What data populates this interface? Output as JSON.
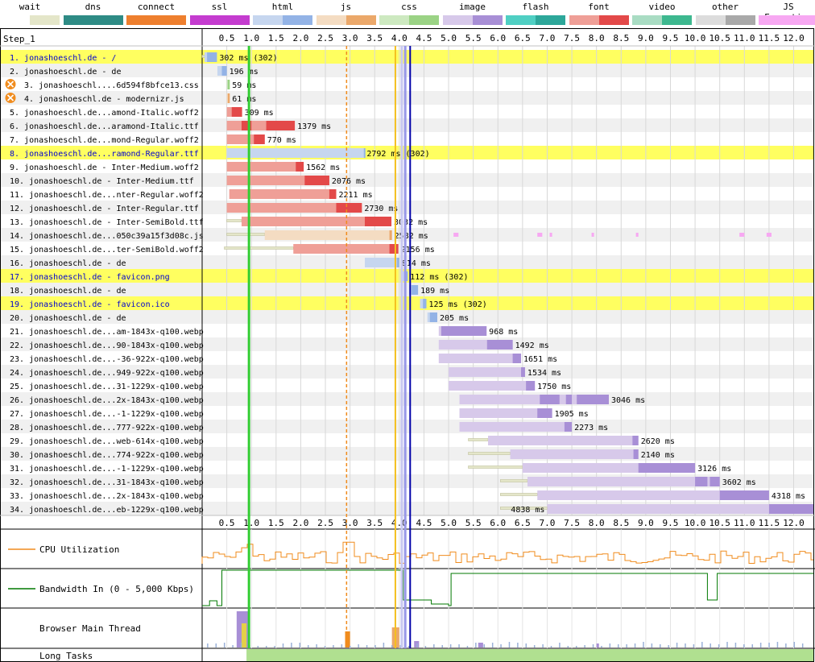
{
  "legend": [
    {
      "label": "wait",
      "a": "#ffffff",
      "b": "#e4e6c9"
    },
    {
      "label": "dns",
      "a": "#2e8b85",
      "b": "#2e8b85"
    },
    {
      "label": "connect",
      "a": "#ee7f2e",
      "b": "#ee7f2e"
    },
    {
      "label": "ssl",
      "a": "#c43ccf",
      "b": "#c43ccf"
    },
    {
      "label": "html",
      "a": "#c6d6ef",
      "b": "#93b3e6"
    },
    {
      "label": "js",
      "a": "#f4dcc2",
      "b": "#eba86a"
    },
    {
      "label": "css",
      "a": "#cde9c0",
      "b": "#9bd385"
    },
    {
      "label": "image",
      "a": "#d7c9ea",
      "b": "#a88fd6"
    },
    {
      "label": "flash",
      "a": "#4fcfc3",
      "b": "#2da79a"
    },
    {
      "label": "font",
      "a": "#ef9f97",
      "b": "#e34949"
    },
    {
      "label": "video",
      "a": "#a9dcc3",
      "b": "#3db88f"
    },
    {
      "label": "other",
      "a": "#dcdcdc",
      "b": "#a9a9a9"
    },
    {
      "label": "JS Execution",
      "a": "#f7a8f2",
      "b": "#f7a8f2"
    }
  ],
  "step_label": "Step_1",
  "chart_data": {
    "type": "waterfall",
    "x_unit": "seconds",
    "x_ticks": [
      "0.5",
      "1.0",
      "1.5",
      "2.0",
      "2.5",
      "3.0",
      "3.5",
      "4.0",
      "4.5",
      "5.0",
      "5.5",
      "6.0",
      "6.5",
      "7.0",
      "7.5",
      "8.0",
      "8.5",
      "9.0",
      "9.5",
      "10.0",
      "10.5",
      "11.0",
      "11.5",
      "12.0"
    ],
    "xlim": [
      0,
      12.4
    ],
    "markers": [
      {
        "name": "start render",
        "t": 0.95,
        "color": "#32cd32",
        "style": "solid",
        "width": 3
      },
      {
        "name": "dom interactive",
        "t": 2.93,
        "color": "#f08c1e",
        "style": "dashed",
        "width": 1.5
      },
      {
        "name": "dom content loaded",
        "t": 3.92,
        "color": "#f4c01e",
        "style": "solid",
        "width": 2
      },
      {
        "name": "on load start",
        "t": 4.05,
        "color": "#c8c8f0",
        "style": "solid",
        "width": 3
      },
      {
        "name": "on load",
        "t": 4.12,
        "color": "#9898e8",
        "style": "solid",
        "width": 3
      },
      {
        "name": "document complete",
        "t": 4.22,
        "color": "#0000a8",
        "style": "solid",
        "width": 2
      }
    ],
    "requests": [
      {
        "n": 1,
        "label": "1. jonashoeschl.de - /",
        "type": "html",
        "highlight": true,
        "link": true,
        "wait": [
          0,
          0.05
        ],
        "start": 0.05,
        "ttfb": 0.1,
        "end": 0.3,
        "text": "302 ms (302)"
      },
      {
        "n": 2,
        "label": "2. jonashoeschl.de - de",
        "type": "html",
        "start": 0.31,
        "ttfb": 0.4,
        "end": 0.5,
        "text": "196 ms"
      },
      {
        "n": 3,
        "label": "3. jonashoeschl....6d594f8bfce13.css",
        "type": "css",
        "blocked": true,
        "start": 0.5,
        "ttfb": 0.52,
        "end": 0.56,
        "text": "59 ms"
      },
      {
        "n": 4,
        "label": "4. jonashoeschl.de - modernizr.js",
        "type": "js",
        "blocked": true,
        "start": 0.5,
        "ttfb": 0.52,
        "end": 0.56,
        "text": "61 ms"
      },
      {
        "n": 5,
        "label": "5. jonashoeschl.de...amond-Italic.woff2",
        "type": "font",
        "start": 0.5,
        "ttfb": 0.6,
        "end": 0.81,
        "text": "309 ms"
      },
      {
        "n": 6,
        "label": "6. jonashoeschl.de...aramond-Italic.ttf",
        "type": "font",
        "start": 0.5,
        "ttfb": 0.81,
        "end": 1.88,
        "chunks": [
          [
            0.8,
            1.0
          ],
          [
            1.3,
            1.88
          ]
        ],
        "text": "1379 ms"
      },
      {
        "n": 7,
        "label": "7. jonashoeschl.de...mond-Regular.woff2",
        "type": "font",
        "start": 0.5,
        "ttfb": 1.05,
        "end": 1.27,
        "text": "770 ms"
      },
      {
        "n": 8,
        "label": "8. jonashoeschl.de...ramond-Regular.ttf",
        "type": "html",
        "highlight": true,
        "link": true,
        "start": 0.5,
        "ttfb": 3.28,
        "end": 3.29,
        "text": "2792 ms (302)"
      },
      {
        "n": 9,
        "label": "9. jonashoeschl.de - Inter-Medium.woff2",
        "type": "font",
        "start": 0.5,
        "ttfb": 1.9,
        "end": 2.06,
        "text": "1562 ms"
      },
      {
        "n": 10,
        "label": "10. jonashoeschl.de - Inter-Medium.ttf",
        "type": "font",
        "start": 0.5,
        "ttfb": 2.08,
        "end": 2.58,
        "text": "2076 ms"
      },
      {
        "n": 11,
        "label": "11. jonashoeschl.de...nter-Regular.woff2",
        "type": "font",
        "start": 0.55,
        "ttfb": 2.58,
        "end": 2.72,
        "text": "2211 ms"
      },
      {
        "n": 12,
        "label": "12. jonashoeschl.de - Inter-Regular.ttf",
        "type": "font",
        "start": 0.5,
        "ttfb": 2.72,
        "end": 3.24,
        "text": "2730 ms"
      },
      {
        "n": 13,
        "label": "13. jonashoeschl.de - Inter-SemiBold.ttf",
        "type": "font",
        "wait": [
          0.5,
          0.8
        ],
        "start": 0.8,
        "ttfb": 3.3,
        "end": 3.84,
        "text": "3032 ms"
      },
      {
        "n": 14,
        "label": "14. jonashoeschl.de...050c39a15f3d08c.js",
        "type": "js",
        "wait": [
          0.5,
          1.27
        ],
        "start": 1.27,
        "ttfb": 3.8,
        "end": 3.85,
        "text": "2582 ms",
        "exec": [
          [
            5.1,
            5.2
          ],
          [
            6.8,
            6.9
          ],
          [
            7.05,
            7.1
          ],
          [
            7.9,
            7.95
          ],
          [
            8.8,
            8.85
          ],
          [
            10.9,
            11.0
          ],
          [
            11.45,
            11.55
          ]
        ]
      },
      {
        "n": 15,
        "label": "15. jonashoeschl.de...ter-SemiBold.woff2",
        "type": "font",
        "wait": [
          0.45,
          1.85
        ],
        "start": 1.85,
        "ttfb": 3.8,
        "end": 3.98,
        "text": "2156 ms"
      },
      {
        "n": 16,
        "label": "16. jonashoeschl.de - de",
        "type": "html",
        "start": 3.3,
        "ttfb": 3.95,
        "end": 4.0,
        "text": "814 ms"
      },
      {
        "n": 17,
        "label": "17. jonashoeschl.de - favicon.png",
        "type": "html",
        "highlight": true,
        "link": true,
        "start": 4.05,
        "ttfb": 4.1,
        "end": 4.17,
        "text": "112 ms (302)"
      },
      {
        "n": 18,
        "label": "18. jonashoeschl.de - de",
        "type": "html",
        "start": 4.2,
        "ttfb": 4.25,
        "end": 4.38,
        "text": "189 ms"
      },
      {
        "n": 19,
        "label": "19. jonashoeschl.de - favicon.ico",
        "type": "html",
        "highlight": true,
        "link": true,
        "start": 4.42,
        "ttfb": 4.48,
        "end": 4.55,
        "text": "125 ms (302)"
      },
      {
        "n": 20,
        "label": "20. jonashoeschl.de - de",
        "type": "html",
        "start": 4.57,
        "ttfb": 4.62,
        "end": 4.77,
        "text": "205 ms"
      },
      {
        "n": 21,
        "label": "21. jonashoeschl.de...am-1843x-q100.webp",
        "type": "image",
        "start": 4.8,
        "ttfb": 4.85,
        "end": 5.77,
        "text": "968 ms"
      },
      {
        "n": 22,
        "label": "22. jonashoeschl.de...90-1843x-q100.webp",
        "type": "image",
        "start": 4.8,
        "ttfb": 5.78,
        "end": 6.3,
        "text": "1492 ms"
      },
      {
        "n": 23,
        "label": "23. jonashoeschl.de...-36-922x-q100.webp",
        "type": "image",
        "start": 4.8,
        "ttfb": 6.3,
        "end": 6.47,
        "text": "1651 ms"
      },
      {
        "n": 24,
        "label": "24. jonashoeschl.de...949-922x-q100.webp",
        "type": "image",
        "start": 5.0,
        "ttfb": 6.47,
        "end": 6.55,
        "text": "1534 ms"
      },
      {
        "n": 25,
        "label": "25. jonashoeschl.de...31-1229x-q100.webp",
        "type": "image",
        "start": 5.0,
        "ttfb": 6.57,
        "end": 6.75,
        "text": "1750 ms"
      },
      {
        "n": 26,
        "label": "26. jonashoeschl.de...2x-1843x-q100.webp",
        "type": "image",
        "start": 5.22,
        "ttfb": 7.4,
        "end": 8.25,
        "chunks": [
          [
            6.85,
            7.25
          ],
          [
            7.38,
            7.5
          ],
          [
            7.6,
            8.25
          ]
        ],
        "text": "3046 ms"
      },
      {
        "n": 27,
        "label": "27. jonashoeschl.de...-1-1229x-q100.webp",
        "type": "image",
        "start": 5.22,
        "ttfb": 6.8,
        "end": 7.1,
        "text": "1905 ms"
      },
      {
        "n": 28,
        "label": "28. jonashoeschl.de...777-922x-q100.webp",
        "type": "image",
        "start": 5.22,
        "ttfb": 7.35,
        "end": 7.5,
        "text": "2273 ms"
      },
      {
        "n": 29,
        "label": "29. jonashoeschl.de...web-614x-q100.webp",
        "type": "image",
        "wait": [
          5.4,
          5.8
        ],
        "start": 5.8,
        "ttfb": 8.73,
        "end": 8.85,
        "text": "2620 ms"
      },
      {
        "n": 30,
        "label": "30. jonashoeschl.de...774-922x-q100.webp",
        "type": "image",
        "wait": [
          5.4,
          6.25
        ],
        "start": 6.25,
        "ttfb": 8.75,
        "end": 8.85,
        "text": "2140 ms"
      },
      {
        "n": 31,
        "label": "31. jonashoeschl.de...-1-1229x-q100.webp",
        "type": "image",
        "wait": [
          5.4,
          6.5
        ],
        "start": 6.5,
        "ttfb": 8.85,
        "end": 10.0,
        "text": "3126 ms"
      },
      {
        "n": 32,
        "label": "32. jonashoeschl.de...31-1843x-q100.webp",
        "type": "image",
        "wait": [
          6.05,
          6.6
        ],
        "start": 6.6,
        "ttfb": 9.95,
        "end": 10.5,
        "chunks": [
          [
            10.0,
            10.25
          ],
          [
            10.3,
            10.5
          ]
        ],
        "text": "3602 ms"
      },
      {
        "n": 33,
        "label": "33. jonashoeschl.de...2x-1843x-q100.webp",
        "type": "image",
        "wait": [
          6.05,
          6.8
        ],
        "start": 6.8,
        "ttfb": 10.5,
        "end": 11.5,
        "text": "4318 ms"
      },
      {
        "n": 34,
        "label": "34. jonashoeschl.de...eb-1229x-q100.webp",
        "type": "image",
        "wait": [
          6.05,
          7.0
        ],
        "start": 7.0,
        "ttfb": 11.5,
        "end": 12.4,
        "text": "4838 ms",
        "text_left": true
      }
    ],
    "panels": [
      {
        "key": "cpu",
        "label": "CPU Utilization",
        "color": "#f08c1e"
      },
      {
        "key": "bw",
        "label": "Bandwidth In (0 - 5,000 Kbps)",
        "color": "#007800"
      },
      {
        "key": "main",
        "label": "Browser Main Thread"
      },
      {
        "key": "long",
        "label": "Long Tasks",
        "color": "#b0e090",
        "span": [
          0.9,
          12.4
        ]
      }
    ]
  }
}
